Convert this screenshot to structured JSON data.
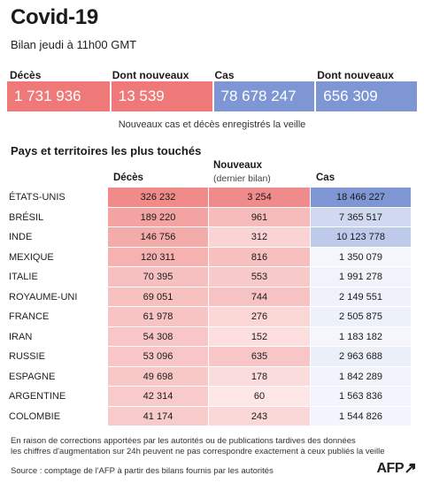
{
  "header": {
    "title": "Covid-19",
    "subtitle": "Bilan jeudi à 11h00 GMT"
  },
  "summary": {
    "labels": [
      "Décès",
      "Dont nouveaux",
      "Cas",
      "Dont nouveaux"
    ],
    "values": [
      "1 731 936",
      "13 539",
      "78 678 247",
      "656 309"
    ],
    "note": "Nouveaux cas et décès enregistrés la veille"
  },
  "colors": {
    "deaths_accent": "#ee7978",
    "cases_accent": "#7e97d4"
  },
  "table": {
    "title": "Pays et territoires les plus touchés",
    "col_deaths": "Décès",
    "col_new": "Nouveaux",
    "col_new_sub": "(dernier bilan)",
    "col_cases": "Cas",
    "rows": [
      {
        "country": "ÉTATS-UNIS",
        "deaths": "326 232",
        "new": "3 254",
        "cases": "18 466 227",
        "deaths_n": 326232,
        "new_n": 3254,
        "cases_n": 18466227
      },
      {
        "country": "BRÉSIL",
        "deaths": "189 220",
        "new": "961",
        "cases": "7 365 517",
        "deaths_n": 189220,
        "new_n": 961,
        "cases_n": 7365517
      },
      {
        "country": "INDE",
        "deaths": "146 756",
        "new": "312",
        "cases": "10 123 778",
        "deaths_n": 146756,
        "new_n": 312,
        "cases_n": 10123778
      },
      {
        "country": "MEXIQUE",
        "deaths": "120 311",
        "new": "816",
        "cases": "1 350 079",
        "deaths_n": 120311,
        "new_n": 816,
        "cases_n": 1350079
      },
      {
        "country": "ITALIE",
        "deaths": "70 395",
        "new": "553",
        "cases": "1 991 278",
        "deaths_n": 70395,
        "new_n": 553,
        "cases_n": 1991278
      },
      {
        "country": "ROYAUME-UNI",
        "deaths": "69 051",
        "new": "744",
        "cases": "2 149 551",
        "deaths_n": 69051,
        "new_n": 744,
        "cases_n": 2149551
      },
      {
        "country": "FRANCE",
        "deaths": "61 978",
        "new": "276",
        "cases": "2 505 875",
        "deaths_n": 61978,
        "new_n": 276,
        "cases_n": 2505875
      },
      {
        "country": "IRAN",
        "deaths": "54 308",
        "new": "152",
        "cases": "1 183 182",
        "deaths_n": 54308,
        "new_n": 152,
        "cases_n": 1183182
      },
      {
        "country": "RUSSIE",
        "deaths": "53 096",
        "new": "635",
        "cases": "2 963 688",
        "deaths_n": 53096,
        "new_n": 635,
        "cases_n": 2963688
      },
      {
        "country": "ESPAGNE",
        "deaths": "49 698",
        "new": "178",
        "cases": "1 842 289",
        "deaths_n": 49698,
        "new_n": 178,
        "cases_n": 1842289
      },
      {
        "country": "ARGENTINE",
        "deaths": "42 314",
        "new": "60",
        "cases": "1 563 836",
        "deaths_n": 42314,
        "new_n": 60,
        "cases_n": 1563836
      },
      {
        "country": "COLOMBIE",
        "deaths": "41 174",
        "new": "243",
        "cases": "1 544 826",
        "deaths_n": 41174,
        "new_n": 243,
        "cases_n": 1544826
      }
    ]
  },
  "footer": {
    "note_line1": "En raison de corrections apportées par les autorités ou de publications tardives des données",
    "note_line2": "les chiffres d'augmentation sur 24h peuvent ne pas correspondre exactement à ceux publiés la veille",
    "source": "Source : comptage de l'AFP à partir des bilans fournis par les autorités",
    "logo": "AFP"
  }
}
